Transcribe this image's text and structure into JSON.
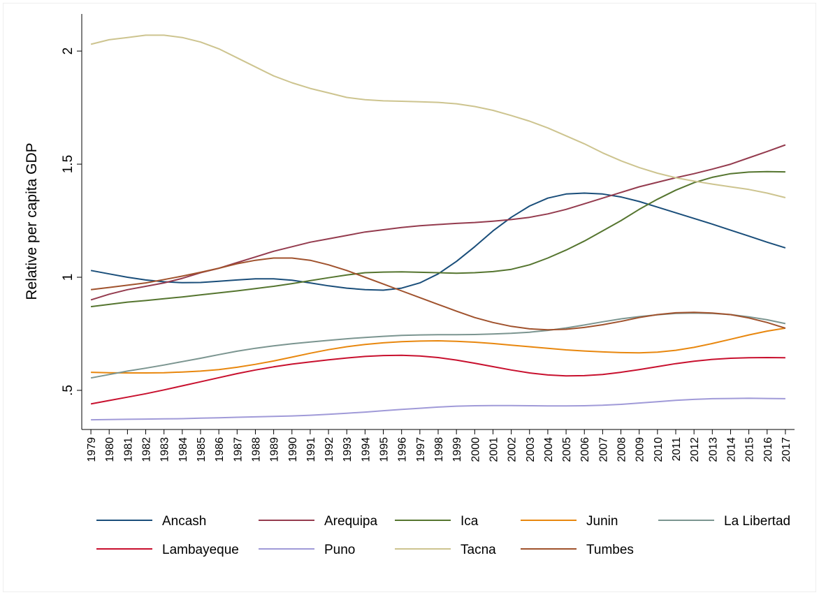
{
  "chart_data": {
    "type": "line",
    "y_label": "Relative per capita GDP",
    "categories": [
      "1979",
      "1980",
      "1981",
      "1982",
      "1983",
      "1984",
      "1985",
      "1986",
      "1987",
      "1988",
      "1989",
      "1990",
      "1991",
      "1992",
      "1993",
      "1994",
      "1995",
      "1996",
      "1997",
      "1998",
      "1999",
      "2000",
      "2001",
      "2002",
      "2003",
      "2004",
      "2005",
      "2006",
      "2007",
      "2008",
      "2009",
      "2010",
      "2011",
      "2012",
      "2013",
      "2014",
      "2015",
      "2016",
      "2017"
    ],
    "ylim": [
      0.327,
      2.164
    ],
    "yticks": [
      {
        "value": 0.5,
        "label": ".5"
      },
      1,
      1.5,
      2
    ],
    "grid": false,
    "legend": "bottom",
    "series": [
      {
        "name": "Ancash",
        "color": "#1a4e7a",
        "values": [
          1.03,
          1.015,
          1.0,
          0.988,
          0.98,
          0.976,
          0.977,
          0.982,
          0.988,
          0.993,
          0.993,
          0.987,
          0.975,
          0.962,
          0.952,
          0.945,
          0.943,
          0.952,
          0.975,
          1.015,
          1.07,
          1.135,
          1.205,
          1.265,
          1.315,
          1.35,
          1.368,
          1.372,
          1.368,
          1.355,
          1.335,
          1.31,
          1.285,
          1.26,
          1.235,
          1.208,
          1.182,
          1.155,
          1.13
        ]
      },
      {
        "name": "Arequipa",
        "color": "#943b4e",
        "values": [
          0.9,
          0.925,
          0.945,
          0.96,
          0.975,
          0.995,
          1.02,
          1.04,
          1.065,
          1.09,
          1.115,
          1.135,
          1.155,
          1.17,
          1.185,
          1.2,
          1.21,
          1.22,
          1.228,
          1.233,
          1.238,
          1.242,
          1.248,
          1.255,
          1.265,
          1.28,
          1.3,
          1.325,
          1.35,
          1.375,
          1.4,
          1.42,
          1.44,
          1.458,
          1.478,
          1.5,
          1.528,
          1.556,
          1.585
        ]
      },
      {
        "name": "Ica",
        "color": "#55752f",
        "values": [
          0.87,
          0.88,
          0.89,
          0.897,
          0.905,
          0.913,
          0.922,
          0.931,
          0.94,
          0.95,
          0.96,
          0.972,
          0.985,
          0.998,
          1.01,
          1.02,
          1.023,
          1.024,
          1.022,
          1.02,
          1.018,
          1.02,
          1.025,
          1.035,
          1.055,
          1.085,
          1.12,
          1.16,
          1.205,
          1.25,
          1.3,
          1.345,
          1.385,
          1.418,
          1.442,
          1.458,
          1.465,
          1.467,
          1.466
        ]
      },
      {
        "name": "Junin",
        "color": "#e8870e",
        "values": [
          0.58,
          0.578,
          0.577,
          0.577,
          0.578,
          0.581,
          0.585,
          0.592,
          0.602,
          0.615,
          0.63,
          0.647,
          0.664,
          0.68,
          0.693,
          0.703,
          0.71,
          0.715,
          0.718,
          0.719,
          0.717,
          0.713,
          0.707,
          0.7,
          0.693,
          0.686,
          0.679,
          0.674,
          0.67,
          0.667,
          0.666,
          0.669,
          0.677,
          0.69,
          0.707,
          0.726,
          0.745,
          0.762,
          0.775
        ]
      },
      {
        "name": "La Libertad",
        "color": "#7b9590",
        "values": [
          0.555,
          0.57,
          0.585,
          0.598,
          0.612,
          0.627,
          0.642,
          0.658,
          0.673,
          0.686,
          0.697,
          0.706,
          0.714,
          0.721,
          0.728,
          0.734,
          0.739,
          0.743,
          0.745,
          0.746,
          0.746,
          0.747,
          0.749,
          0.752,
          0.757,
          0.765,
          0.776,
          0.789,
          0.803,
          0.816,
          0.826,
          0.834,
          0.84,
          0.842,
          0.84,
          0.835,
          0.825,
          0.812,
          0.795
        ]
      },
      {
        "name": "Lambayeque",
        "color": "#c8102e",
        "values": [
          0.44,
          0.455,
          0.47,
          0.485,
          0.502,
          0.52,
          0.538,
          0.556,
          0.574,
          0.59,
          0.604,
          0.616,
          0.626,
          0.635,
          0.643,
          0.65,
          0.654,
          0.655,
          0.652,
          0.645,
          0.634,
          0.62,
          0.605,
          0.59,
          0.577,
          0.568,
          0.564,
          0.565,
          0.57,
          0.58,
          0.592,
          0.605,
          0.618,
          0.629,
          0.637,
          0.642,
          0.644,
          0.645,
          0.644
        ]
      },
      {
        "name": "Puno",
        "color": "#a09ad8",
        "values": [
          0.37,
          0.371,
          0.372,
          0.373,
          0.374,
          0.375,
          0.377,
          0.379,
          0.381,
          0.383,
          0.385,
          0.387,
          0.39,
          0.394,
          0.399,
          0.404,
          0.41,
          0.416,
          0.421,
          0.426,
          0.43,
          0.432,
          0.433,
          0.433,
          0.432,
          0.431,
          0.431,
          0.432,
          0.434,
          0.438,
          0.444,
          0.45,
          0.456,
          0.46,
          0.463,
          0.464,
          0.465,
          0.464,
          0.463
        ]
      },
      {
        "name": "Tacna",
        "color": "#cdc48f",
        "values": [
          2.03,
          2.05,
          2.06,
          2.07,
          2.07,
          2.06,
          2.04,
          2.01,
          1.97,
          1.93,
          1.89,
          1.86,
          1.835,
          1.815,
          1.795,
          1.785,
          1.78,
          1.778,
          1.776,
          1.773,
          1.767,
          1.755,
          1.738,
          1.715,
          1.69,
          1.66,
          1.625,
          1.59,
          1.55,
          1.515,
          1.485,
          1.46,
          1.44,
          1.425,
          1.412,
          1.4,
          1.388,
          1.372,
          1.352
        ]
      },
      {
        "name": "Tumbes",
        "color": "#a0522d",
        "values": [
          0.945,
          0.955,
          0.965,
          0.975,
          0.99,
          1.005,
          1.022,
          1.04,
          1.06,
          1.075,
          1.085,
          1.085,
          1.075,
          1.055,
          1.03,
          1.0,
          0.97,
          0.94,
          0.91,
          0.88,
          0.85,
          0.822,
          0.8,
          0.783,
          0.772,
          0.768,
          0.77,
          0.778,
          0.79,
          0.805,
          0.822,
          0.835,
          0.843,
          0.845,
          0.842,
          0.835,
          0.82,
          0.8,
          0.775
        ]
      }
    ]
  }
}
